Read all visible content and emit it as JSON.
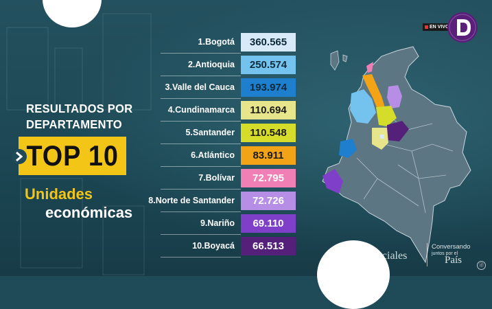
{
  "headline": {
    "line1": "RESULTADOS POR",
    "line2": "DEPARTAMENTO",
    "top": "TOP 10",
    "sub1": "Unidades",
    "sub2": "económicas"
  },
  "ranking": [
    {
      "label": "1.Bogotá",
      "value": "360.565",
      "bg": "#d8eaf7",
      "fg": "#0d2a3a"
    },
    {
      "label": "2.Antioquia",
      "value": "250.574",
      "bg": "#74c3ee",
      "fg": "#0d2a3a"
    },
    {
      "label": "3.Valle del Cauca",
      "value": "193.974",
      "bg": "#1e7fcf",
      "fg": "#0d2a3a"
    },
    {
      "label": "4.Cundinamarca",
      "value": "110.694",
      "bg": "#e6e58c",
      "fg": "#1a1a1a"
    },
    {
      "label": "5.Santander",
      "value": "110.548",
      "bg": "#d6dc2a",
      "fg": "#1a1a1a"
    },
    {
      "label": "6.Atlántico",
      "value": "83.911",
      "bg": "#f2a416",
      "fg": "#1a1a1a"
    },
    {
      "label": "7.Bolívar",
      "value": "72.795",
      "bg": "#ef7fb5",
      "fg": "#ffffff"
    },
    {
      "label": "8.Norte de Santander",
      "value": "72.726",
      "bg": "#b78ee6",
      "fg": "#ffffff"
    },
    {
      "label": "9.Nariño",
      "value": "69.110",
      "bg": "#7f3fc9",
      "fg": "#ffffff"
    },
    {
      "label": "10.Boyacá",
      "value": "66.513",
      "bg": "#55207a",
      "fg": "#ffffff"
    }
  ],
  "live_badge": "EN VIVO",
  "watermark": {
    "left": "Sociales",
    "right_line1": "Conversando",
    "right_line2": "juntos por el",
    "right_line3": "País"
  },
  "corner_glyph": "ⓓ",
  "colors": {
    "background": "#1f4a58",
    "accent_yellow": "#f2c516",
    "map_base": "#5d7683",
    "logo_purple": "#5a1f7a"
  }
}
